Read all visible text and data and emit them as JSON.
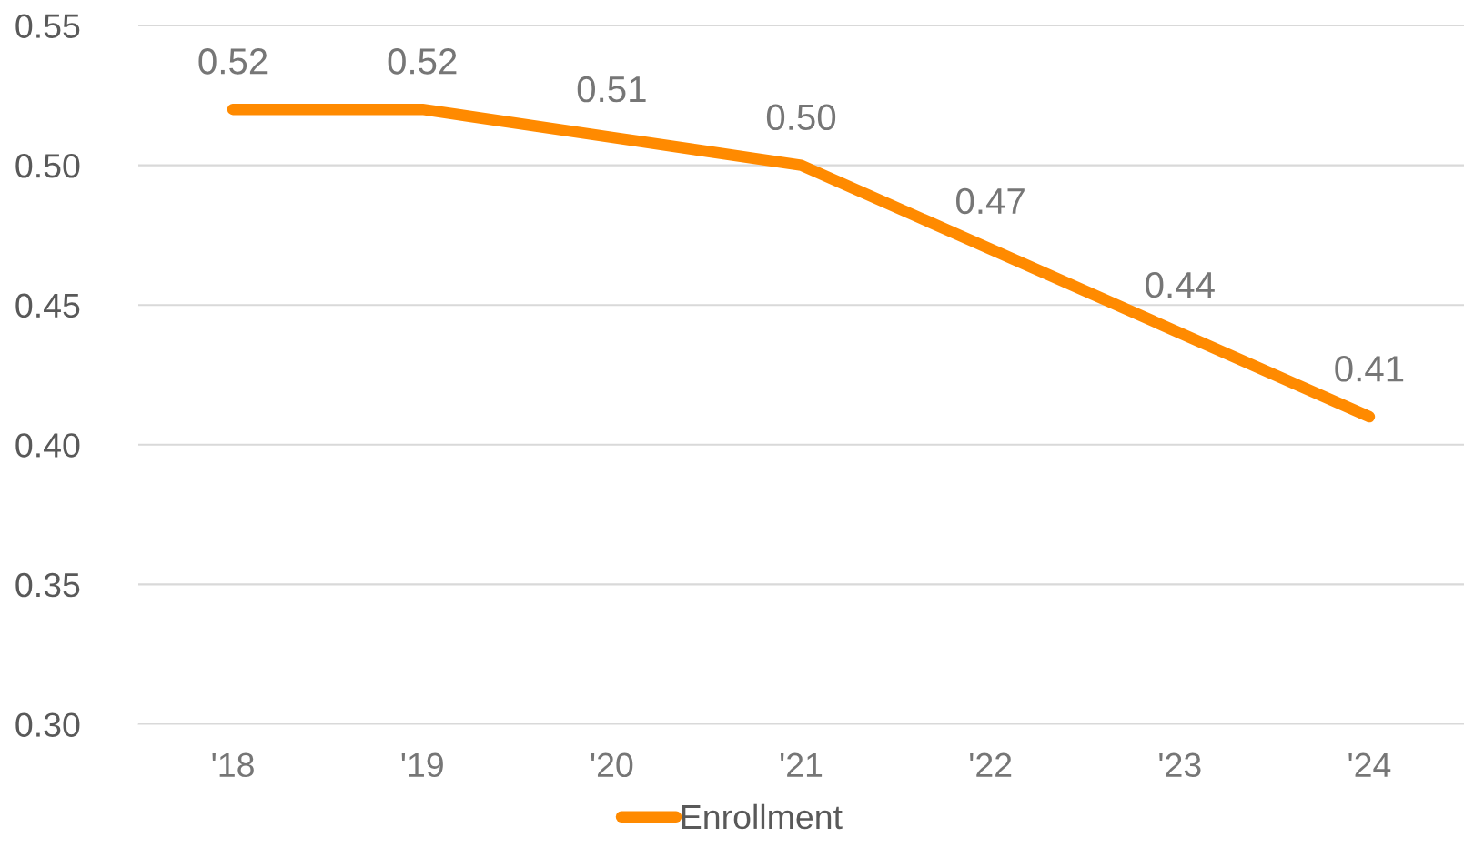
{
  "chart_data": {
    "type": "line",
    "categories": [
      "'18",
      "'19",
      "'20",
      "'21",
      "'22",
      "'23",
      "'24"
    ],
    "series": [
      {
        "name": "Enrollment",
        "color": "#ff8a00",
        "values": [
          0.52,
          0.52,
          0.51,
          0.5,
          0.47,
          0.44,
          0.41
        ],
        "value_labels": [
          "0.52",
          "0.52",
          "0.51",
          "0.50",
          "0.47",
          "0.44",
          "0.41"
        ]
      }
    ],
    "ylim": [
      0.3,
      0.55
    ],
    "yticks": [
      "0.30",
      "0.35",
      "0.40",
      "0.45",
      "0.50",
      "0.55"
    ],
    "grid": "y",
    "legend": "bottom",
    "line_style": "solid"
  }
}
